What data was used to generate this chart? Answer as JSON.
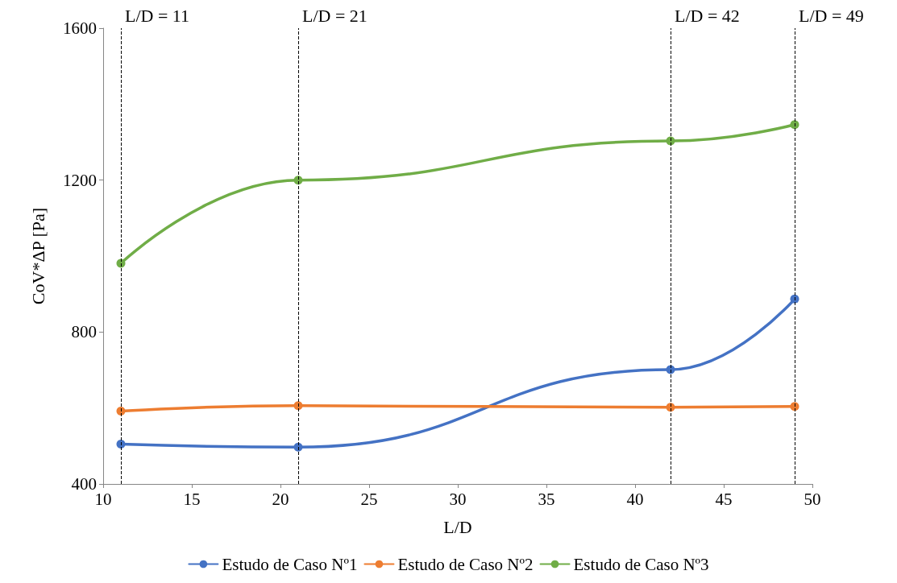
{
  "chart_data": {
    "type": "line",
    "xlabel": "L/D",
    "ylabel": "CoV*ΔP [Pa]",
    "xlim": [
      10,
      50
    ],
    "xticks": [
      10,
      15,
      20,
      25,
      30,
      35,
      40,
      45,
      50
    ],
    "ylim": [
      400,
      1600
    ],
    "yticks": [
      400,
      800,
      1200,
      1600
    ],
    "series": [
      {
        "name": "Estudo de Caso Nº1",
        "color": "#4472c4",
        "x": [
          11,
          21,
          42,
          49
        ],
        "values": [
          505,
          497,
          701,
          887
        ]
      },
      {
        "name": "Estudo de Caso Nº2",
        "color": "#ed7d31",
        "x": [
          11,
          21,
          42,
          49
        ],
        "values": [
          592,
          606,
          602,
          604
        ]
      },
      {
        "name": "Estudo de Caso Nº3",
        "color": "#70ad47",
        "x": [
          11,
          21,
          42,
          49
        ],
        "values": [
          981,
          1200,
          1303,
          1346
        ]
      }
    ],
    "ref_lines": [
      {
        "axis": "x",
        "value": 11,
        "label": "L/D = 11",
        "color": "#000000",
        "line_style": "dashed"
      },
      {
        "axis": "x",
        "value": 21,
        "label": "L/D = 21",
        "color": "#000000",
        "line_style": "dashed"
      },
      {
        "axis": "x",
        "value": 42,
        "label": "L/D = 42",
        "color": "#000000",
        "line_style": "dashed"
      },
      {
        "axis": "x",
        "value": 49,
        "label": "L/D = 49",
        "color": "#000000",
        "line_style": "dashed"
      }
    ],
    "grid": false,
    "legend": "bottom",
    "marker": "circle",
    "line_style": "solid"
  }
}
